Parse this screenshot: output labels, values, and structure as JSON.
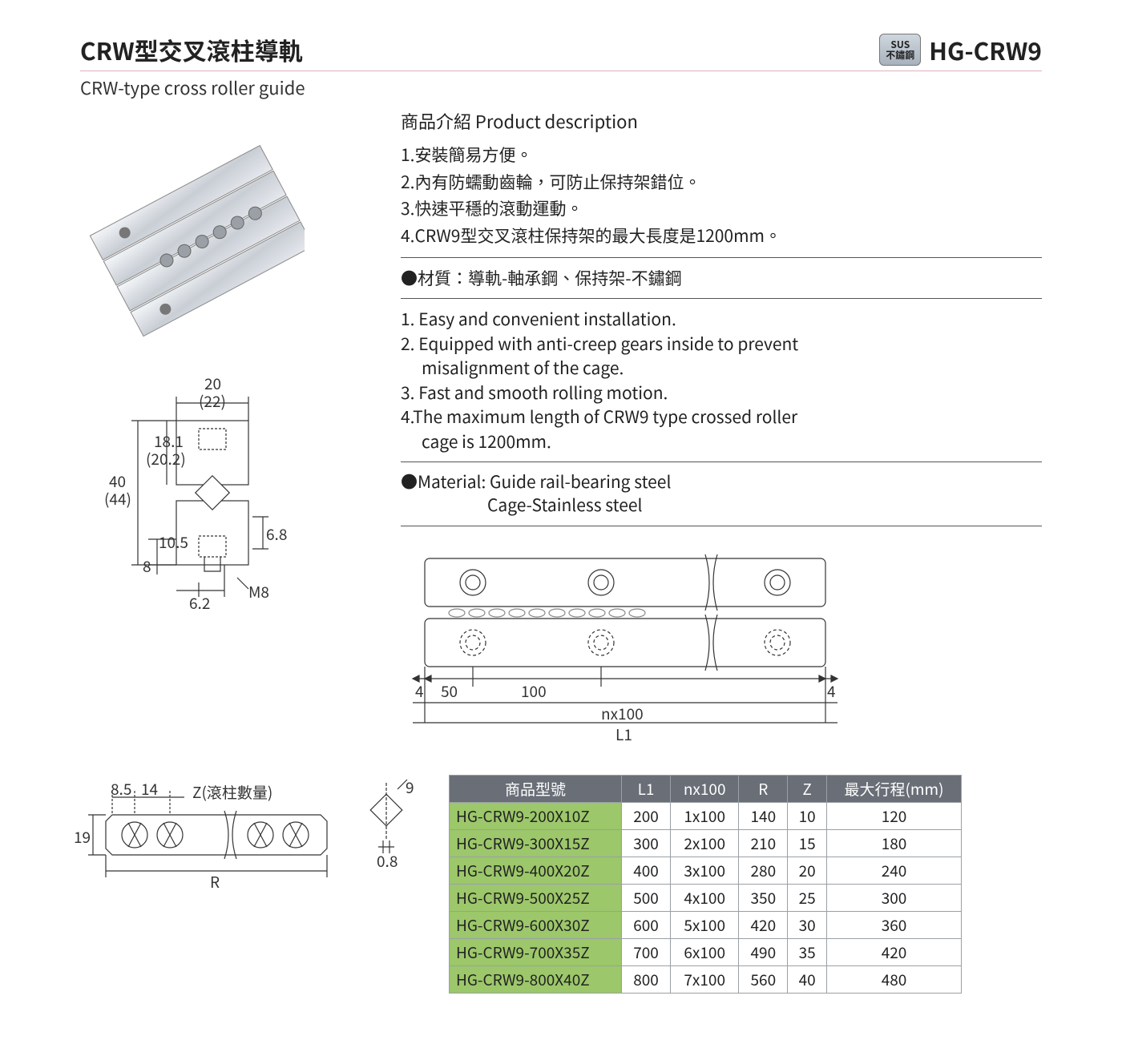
{
  "header": {
    "title_cn_prefix": "CRW",
    "title_cn_rest": "型交叉滾柱導軌",
    "subtitle_en": "CRW-type cross roller guide",
    "badge_top": "SUS",
    "badge_bottom": "不鏽鋼",
    "model": "HG-CRW9"
  },
  "desc": {
    "heading": "商品介紹 Product description",
    "cn1": "1.安裝簡易方便。",
    "cn2": "2.內有防蠕動齒輪，可防止保持架錯位。",
    "cn3": "3.快速平穩的滾動運動。",
    "cn4": "4.CRW9型交叉滾柱保持架的最大長度是1200mm。",
    "mat_cn": "●材質：導軌-軸承鋼、保持架-不鏽鋼",
    "en1": "1. Easy and convenient installation.",
    "en2a": "2. Equipped with anti-creep gears inside to prevent",
    "en2b": "misalignment of the cage.",
    "en3": "3. Fast and smooth rolling motion.",
    "en4a": "4.The maximum length of CRW9 type crossed roller",
    "en4b": "cage is 1200mm.",
    "mat_en1": "●Material: Guide rail-bearing steel",
    "mat_en2": "Cage-Stainless steel"
  },
  "crosssec": {
    "d20": "20",
    "d22": "(22)",
    "d181": "18.1",
    "d202": "(20.2)",
    "d40": "40",
    "d44": "(44)",
    "d105": "10.5",
    "d8": "8",
    "d62": "6.2",
    "d68": "6.8",
    "m8": "M8"
  },
  "toprail": {
    "d4l": "4",
    "d50": "50",
    "d100": "100",
    "d4r": "4",
    "nx100": "nx100",
    "l1": "L1"
  },
  "cage": {
    "d85": "8.5",
    "d14": "14",
    "zlabel": "Z(滾柱數量)",
    "d19": "19",
    "r": "R"
  },
  "roller": {
    "d9": "9",
    "d08": "0.8"
  },
  "table": {
    "headers": {
      "model": "商品型號",
      "l1": "L1",
      "nx100": "nx100",
      "r": "R",
      "z": "Z",
      "stroke": "最大行程(mm)"
    },
    "rows": [
      {
        "model": "HG-CRW9-200X10Z",
        "l1": "200",
        "nx": "1x100",
        "r": "140",
        "z": "10",
        "s": "120"
      },
      {
        "model": "HG-CRW9-300X15Z",
        "l1": "300",
        "nx": "2x100",
        "r": "210",
        "z": "15",
        "s": "180"
      },
      {
        "model": "HG-CRW9-400X20Z",
        "l1": "400",
        "nx": "3x100",
        "r": "280",
        "z": "20",
        "s": "240"
      },
      {
        "model": "HG-CRW9-500X25Z",
        "l1": "500",
        "nx": "4x100",
        "r": "350",
        "z": "25",
        "s": "300"
      },
      {
        "model": "HG-CRW9-600X30Z",
        "l1": "600",
        "nx": "5x100",
        "r": "420",
        "z": "30",
        "s": "360"
      },
      {
        "model": "HG-CRW9-700X35Z",
        "l1": "700",
        "nx": "6x100",
        "r": "490",
        "z": "35",
        "s": "420"
      },
      {
        "model": "HG-CRW9-800X40Z",
        "l1": "800",
        "nx": "7x100",
        "r": "560",
        "z": "40",
        "s": "480"
      }
    ]
  },
  "colors": {
    "header_bg": "#696e77",
    "model_bg": "#9cc76a",
    "border": "#9aa0a6"
  }
}
